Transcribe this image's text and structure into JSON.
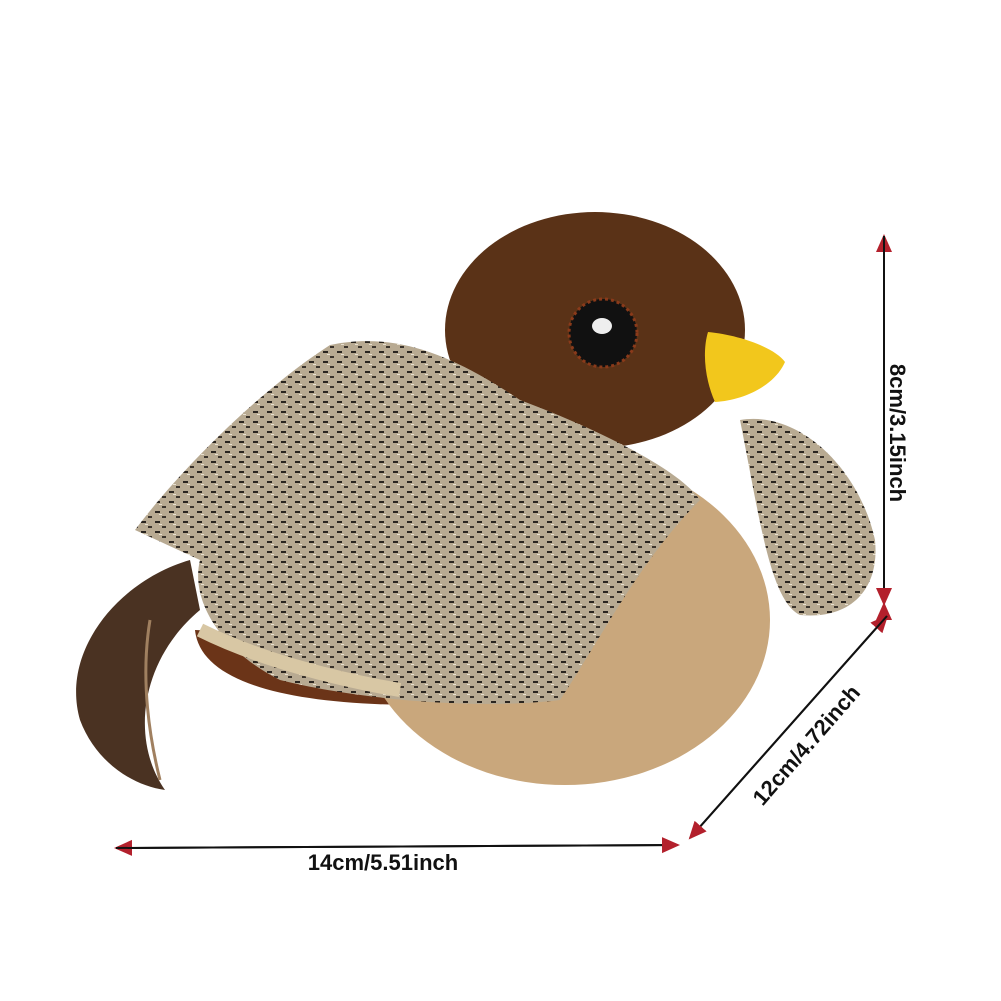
{
  "dimensions": {
    "height": "8cm/3.15inch",
    "depth": "12cm/4.72inch",
    "length": "14cm/5.51inch"
  },
  "colors": {
    "arrow_line": "#111111",
    "arrowhead": "#b3202c",
    "head": "#5a3217",
    "body": "#c9a77c",
    "beak": "#f2c71c"
  },
  "product": "plush bird toy"
}
